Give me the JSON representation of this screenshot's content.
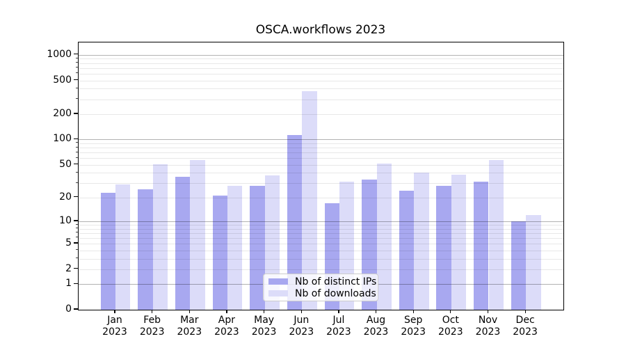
{
  "figure": {
    "background": "#ffffff"
  },
  "chart_data": {
    "type": "bar",
    "title": "OSCA.workflows 2023",
    "categories": [
      "Jan",
      "Feb",
      "Mar",
      "Apr",
      "May",
      "Jun",
      "Jul",
      "Aug",
      "Sep",
      "Oct",
      "Nov",
      "Dec"
    ],
    "category_year": "2023",
    "series": [
      {
        "name": "Nb of distinct IPs",
        "color": "#a8a8f0",
        "values": [
          23,
          25,
          36,
          21,
          28,
          112,
          17,
          33,
          24,
          28,
          31,
          10
        ]
      },
      {
        "name": "Nb of downloads",
        "color": "#dcdcf9",
        "values": [
          29,
          51,
          57,
          28,
          37,
          370,
          31,
          52,
          40,
          38,
          57,
          12
        ]
      }
    ],
    "xlabel": "",
    "ylabel": "",
    "yscale": "log1p",
    "ylim": [
      0,
      1400
    ],
    "yticks": [
      0,
      1,
      2,
      5,
      10,
      20,
      50,
      100,
      200,
      500,
      1000
    ],
    "ytick_labels": [
      "0",
      "1",
      "2",
      "5",
      "10",
      "20",
      "50",
      "100",
      "200",
      "500",
      "1000"
    ],
    "major_gridlines": [
      1,
      10,
      100,
      1000
    ],
    "minor_gridlines": [
      2,
      3,
      4,
      5,
      6,
      7,
      8,
      9,
      20,
      30,
      40,
      50,
      60,
      70,
      80,
      90,
      200,
      300,
      400,
      500,
      600,
      700,
      800,
      900
    ],
    "grid": "both",
    "grid_major_color": "rgba(0,0,0,0.30)",
    "grid_minor_color": "rgba(0,0,0,0.09)",
    "legend_position": "lower center"
  }
}
